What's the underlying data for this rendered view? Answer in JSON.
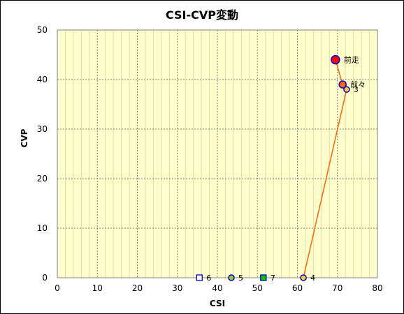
{
  "chart_data": {
    "type": "scatter",
    "title": "CSI-CVP変動",
    "xlabel": "CSI",
    "ylabel": "CVP",
    "xlim": [
      0,
      80
    ],
    "ylim": [
      0,
      50
    ],
    "xticks": [
      "0",
      "10",
      "20",
      "30",
      "40",
      "50",
      "60",
      "70",
      "80"
    ],
    "yticks": [
      "0",
      "10",
      "20",
      "30",
      "40",
      "50"
    ],
    "grid": true,
    "line_color": "#ff6600",
    "plot_background": "#ffffcc",
    "connected_path": [
      "前走",
      "前々",
      "3",
      "4"
    ],
    "points": [
      {
        "label": "前走",
        "x": 69.5,
        "y": 44,
        "marker": "circle",
        "fill": "#ff0000",
        "stroke": "#0000cc",
        "r": 6
      },
      {
        "label": "前々",
        "x": 71.3,
        "y": 39,
        "marker": "circle",
        "fill": "#ff6600",
        "stroke": "#0000cc",
        "r": 5
      },
      {
        "label": "3",
        "x": 72.3,
        "y": 38,
        "marker": "circle",
        "fill": "#ffcc33",
        "stroke": "#0000cc",
        "r": 4
      },
      {
        "label": "4",
        "x": 61.5,
        "y": 0,
        "marker": "circle",
        "fill": "#ffcc33",
        "stroke": "#0000cc",
        "r": 4
      },
      {
        "label": "5",
        "x": 43.5,
        "y": 0,
        "marker": "circle",
        "fill": "#99cc33",
        "stroke": "#0000cc",
        "r": 4
      },
      {
        "label": "6",
        "x": 35.5,
        "y": 0,
        "marker": "square",
        "fill": "#ffffff",
        "stroke": "#0000cc",
        "r": 4
      },
      {
        "label": "7",
        "x": 51.5,
        "y": 0,
        "marker": "square",
        "fill": "#00cc00",
        "stroke": "#0000cc",
        "r": 4
      }
    ]
  }
}
